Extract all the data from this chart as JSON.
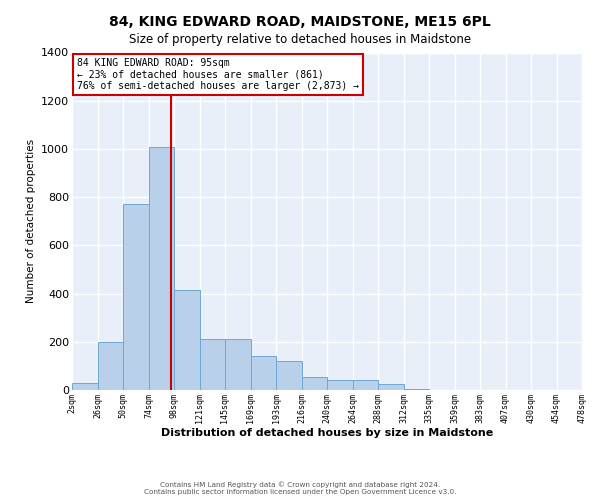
{
  "title": "84, KING EDWARD ROAD, MAIDSTONE, ME15 6PL",
  "subtitle": "Size of property relative to detached houses in Maidstone",
  "xlabel": "Distribution of detached houses by size in Maidstone",
  "ylabel": "Number of detached properties",
  "footer_line1": "Contains HM Land Registry data © Crown copyright and database right 2024.",
  "footer_line2": "Contains public sector information licensed under the Open Government Licence v3.0.",
  "annotation_line1": "84 KING EDWARD ROAD: 95sqm",
  "annotation_line2": "← 23% of detached houses are smaller (861)",
  "annotation_line3": "76% of semi-detached houses are larger (2,873) →",
  "bar_color": "#b8d0ea",
  "bar_edge_color": "#6fa8d4",
  "bg_color": "#e8eff8",
  "grid_color": "#ffffff",
  "property_line_color": "#cc0000",
  "annotation_box_color": "#cc0000",
  "ylim": [
    0,
    1400
  ],
  "property_value": 95,
  "bin_edges": [
    2,
    26,
    50,
    74,
    98,
    121,
    145,
    169,
    193,
    216,
    240,
    264,
    288,
    312,
    335,
    359,
    383,
    407,
    430,
    454,
    478
  ],
  "bin_labels": [
    "2sqm",
    "26sqm",
    "50sqm",
    "74sqm",
    "98sqm",
    "121sqm",
    "145sqm",
    "169sqm",
    "193sqm",
    "216sqm",
    "240sqm",
    "264sqm",
    "288sqm",
    "312sqm",
    "335sqm",
    "359sqm",
    "383sqm",
    "407sqm",
    "430sqm",
    "454sqm",
    "478sqm"
  ],
  "bar_heights": [
    30,
    200,
    770,
    1010,
    415,
    210,
    210,
    140,
    120,
    55,
    40,
    40,
    25,
    5,
    0,
    0,
    0,
    0,
    0,
    0
  ]
}
